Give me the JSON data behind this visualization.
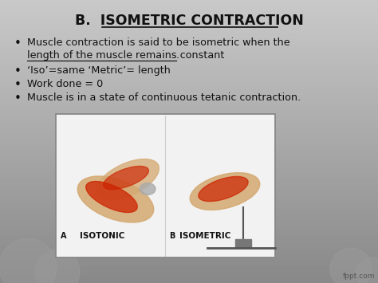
{
  "title": "B.  ISOMETRIC CONTRACTION",
  "title_color": "#111111",
  "title_fontsize": 12.5,
  "bullet_fontsize": 9.2,
  "text_color": "#111111",
  "watermark": "fppt.com",
  "bullet1_line1": "Muscle contraction is said to be isometric when the",
  "bullet1_line2_ul": "length of the muscle remains constant",
  "bullet1_line2_rest": ".",
  "bullet2": "‘Iso’=same ‘Metric’= length",
  "bullet3": "Work done = 0",
  "bullet4": "Muscle is in a state of continuous tetanic contraction.",
  "box_facecolor": "#f2f2f2",
  "box_edgecolor": "#888888",
  "label_a": "A",
  "label_isotonic": "ISOTONIC",
  "label_b": "B",
  "label_isometric": "ISOMETRIC"
}
